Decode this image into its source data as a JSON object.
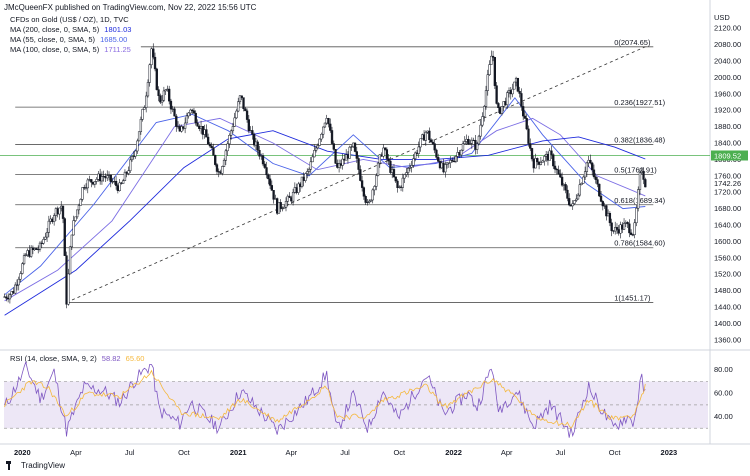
{
  "header": {
    "publisher_line": "JMcQueenFX published on TradingView.com, Nov 22, 2022 15:56 UTC"
  },
  "legend": {
    "title": "CFDs on Gold (US$ / OZ), 1D, TVC",
    "rows": [
      {
        "label": "MA (200, close, 0, SMA, 5)",
        "value": "1801.03",
        "color": "#1f2bdc"
      },
      {
        "label": "MA (55, close, 0, SMA, 5)",
        "value": "1685.00",
        "color": "#4a63e8"
      },
      {
        "label": "MA (100, close, 0, SMA, 5)",
        "value": "1711.25",
        "color": "#8a6be0"
      }
    ]
  },
  "rsi_legend": {
    "label": "RSI (14, close, SMA, 9, 2)",
    "rsi_value": "58.82",
    "ma_value": "65.60"
  },
  "footer": {
    "brand": "TradingView"
  },
  "colors": {
    "candle": "#131722",
    "fib_line": "#787b86",
    "ma200": "#1f2bdc",
    "ma55": "#4a63e8",
    "ma100": "#7d6fe4",
    "green_line": "#4caf50",
    "rsi_line": "#7e57c2",
    "rsi_ma": "#f5b83d",
    "rsi_band": "#ede7f6",
    "price_badge": "#4caf50"
  },
  "chart_data": [
    {
      "type": "candlestick",
      "title": "CFDs on Gold (US$ / OZ), 1D, TVC",
      "y_axis_label": "USD",
      "ylim": [
        1340,
        2140
      ],
      "y_ticks": [
        1360,
        1400,
        1440,
        1480,
        1520,
        1560,
        1600,
        1640,
        1680,
        1720,
        1760,
        1800,
        1840,
        1880,
        1920,
        1960,
        2000,
        2040,
        2080,
        2120
      ],
      "x_ticks": [
        "2020",
        "Apr",
        "Jul",
        "Oct",
        "2021",
        "Apr",
        "Jul",
        "Oct",
        "2022",
        "Apr",
        "Jul",
        "Oct",
        "2023"
      ],
      "x_tick_bold": [
        "2020",
        "2021",
        "2022",
        "2023"
      ],
      "last_price": "1742.26",
      "green_level": {
        "value": 1809.52,
        "label": "1809.52"
      },
      "fib_levels": [
        {
          "label": "0(2074.65)",
          "value": 2074.65
        },
        {
          "label": "0.236(1927.51)",
          "value": 1927.51
        },
        {
          "label": "0.382(1836.48)",
          "value": 1836.48
        },
        {
          "label": "0.5(1762.91)",
          "value": 1762.91
        },
        {
          "label": "0.618(1689.34)",
          "value": 1689.34
        },
        {
          "label": "0.786(1584.60)",
          "value": 1584.6
        },
        {
          "label": "1(1451.17)",
          "value": 1451.17
        }
      ],
      "trendline": {
        "from": [
          "2020-03-16",
          1451.17
        ],
        "to": [
          "2022-11-22",
          2074.65
        ]
      },
      "price_path": [
        [
          "2019-12-02",
          1465
        ],
        [
          "2019-12-16",
          1476
        ],
        [
          "2020-01-08",
          1570
        ],
        [
          "2020-01-31",
          1585
        ],
        [
          "2020-02-24",
          1670
        ],
        [
          "2020-03-09",
          1690
        ],
        [
          "2020-03-16",
          1455
        ],
        [
          "2020-03-24",
          1620
        ],
        [
          "2020-04-14",
          1740
        ],
        [
          "2020-05-18",
          1760
        ],
        [
          "2020-06-15",
          1730
        ],
        [
          "2020-07-08",
          1810
        ],
        [
          "2020-07-27",
          1940
        ],
        [
          "2020-08-07",
          2070
        ],
        [
          "2020-08-20",
          1940
        ],
        [
          "2020-09-01",
          1970
        ],
        [
          "2020-09-24",
          1860
        ],
        [
          "2020-10-12",
          1925
        ],
        [
          "2020-11-09",
          1850
        ],
        [
          "2020-11-30",
          1765
        ],
        [
          "2021-01-05",
          1955
        ],
        [
          "2021-01-25",
          1850
        ],
        [
          "2021-02-15",
          1790
        ],
        [
          "2021-03-08",
          1680
        ],
        [
          "2021-03-31",
          1705
        ],
        [
          "2021-04-30",
          1770
        ],
        [
          "2021-05-31",
          1910
        ],
        [
          "2021-06-17",
          1775
        ],
        [
          "2021-07-15",
          1830
        ],
        [
          "2021-08-09",
          1680
        ],
        [
          "2021-09-03",
          1830
        ],
        [
          "2021-09-29",
          1725
        ],
        [
          "2021-10-22",
          1795
        ],
        [
          "2021-11-16",
          1870
        ],
        [
          "2021-12-15",
          1770
        ],
        [
          "2022-01-25",
          1850
        ],
        [
          "2022-02-10",
          1830
        ],
        [
          "2022-03-08",
          2070
        ],
        [
          "2022-03-16",
          1910
        ],
        [
          "2022-04-18",
          1990
        ],
        [
          "2022-05-16",
          1790
        ],
        [
          "2022-06-14",
          1810
        ],
        [
          "2022-07-21",
          1680
        ],
        [
          "2022-08-17",
          1800
        ],
        [
          "2022-09-28",
          1625
        ],
        [
          "2022-10-21",
          1640
        ],
        [
          "2022-11-03",
          1620
        ],
        [
          "2022-11-15",
          1785
        ],
        [
          "2022-11-22",
          1742
        ]
      ],
      "ma_series": [
        {
          "name": "MA (55, close, 0, SMA, 5)",
          "points": [
            [
              "2019-12-02",
              1470
            ],
            [
              "2020-02-01",
              1540
            ],
            [
              "2020-05-01",
              1690
            ],
            [
              "2020-08-15",
              1890
            ],
            [
              "2020-10-15",
              1910
            ],
            [
              "2020-12-15",
              1870
            ],
            [
              "2021-03-01",
              1790
            ],
            [
              "2021-05-01",
              1760
            ],
            [
              "2021-07-15",
              1860
            ],
            [
              "2021-09-15",
              1780
            ],
            [
              "2021-12-01",
              1790
            ],
            [
              "2022-02-01",
              1815
            ],
            [
              "2022-04-15",
              1950
            ],
            [
              "2022-06-01",
              1860
            ],
            [
              "2022-08-15",
              1740
            ],
            [
              "2022-10-15",
              1680
            ],
            [
              "2022-11-22",
              1685
            ]
          ]
        },
        {
          "name": "MA (100, close, 0, SMA, 5)",
          "points": [
            [
              "2019-12-02",
              1455
            ],
            [
              "2020-03-01",
              1530
            ],
            [
              "2020-06-01",
              1650
            ],
            [
              "2020-09-15",
              1880
            ],
            [
              "2020-12-01",
              1900
            ],
            [
              "2021-03-01",
              1840
            ],
            [
              "2021-05-15",
              1775
            ],
            [
              "2021-08-01",
              1800
            ],
            [
              "2021-10-15",
              1780
            ],
            [
              "2022-01-01",
              1800
            ],
            [
              "2022-03-15",
              1870
            ],
            [
              "2022-05-15",
              1900
            ],
            [
              "2022-07-01",
              1860
            ],
            [
              "2022-09-01",
              1760
            ],
            [
              "2022-11-22",
              1711
            ]
          ]
        },
        {
          "name": "MA (200, close, 0, SMA, 5)",
          "points": [
            [
              "2019-12-02",
              1420
            ],
            [
              "2020-04-01",
              1530
            ],
            [
              "2020-07-01",
              1650
            ],
            [
              "2020-10-01",
              1780
            ],
            [
              "2020-12-15",
              1850
            ],
            [
              "2021-03-01",
              1870
            ],
            [
              "2021-06-01",
              1820
            ],
            [
              "2021-09-01",
              1800
            ],
            [
              "2021-12-01",
              1800
            ],
            [
              "2022-03-01",
              1810
            ],
            [
              "2022-06-01",
              1845
            ],
            [
              "2022-08-01",
              1855
            ],
            [
              "2022-10-01",
              1830
            ],
            [
              "2022-11-22",
              1801
            ]
          ]
        }
      ]
    },
    {
      "type": "line",
      "title": "RSI (14, close, SMA, 9, 2)",
      "ylim": [
        20,
        90
      ],
      "y_ticks": [
        40.0,
        60.0,
        80.0
      ],
      "band": [
        30,
        70
      ],
      "series": [
        {
          "name": "RSI",
          "points": [
            [
              "2019-12-02",
              48
            ],
            [
              "2020-01-08",
              82
            ],
            [
              "2020-02-01",
              55
            ],
            [
              "2020-02-24",
              78
            ],
            [
              "2020-03-16",
              28
            ],
            [
              "2020-04-14",
              65
            ],
            [
              "2020-05-18",
              62
            ],
            [
              "2020-06-15",
              52
            ],
            [
              "2020-07-08",
              70
            ],
            [
              "2020-08-07",
              85
            ],
            [
              "2020-08-20",
              45
            ],
            [
              "2020-09-24",
              34
            ],
            [
              "2020-10-12",
              52
            ],
            [
              "2020-11-30",
              30
            ],
            [
              "2021-01-05",
              62
            ],
            [
              "2021-02-15",
              40
            ],
            [
              "2021-03-08",
              28
            ],
            [
              "2021-04-30",
              55
            ],
            [
              "2021-05-31",
              76
            ],
            [
              "2021-06-17",
              28
            ],
            [
              "2021-07-15",
              58
            ],
            [
              "2021-08-09",
              30
            ],
            [
              "2021-09-03",
              62
            ],
            [
              "2021-09-29",
              38
            ],
            [
              "2021-11-16",
              76
            ],
            [
              "2021-12-15",
              42
            ],
            [
              "2022-01-25",
              60
            ],
            [
              "2022-02-10",
              48
            ],
            [
              "2022-03-08",
              85
            ],
            [
              "2022-03-16",
              45
            ],
            [
              "2022-04-18",
              62
            ],
            [
              "2022-05-16",
              32
            ],
            [
              "2022-06-14",
              50
            ],
            [
              "2022-07-21",
              24
            ],
            [
              "2022-08-17",
              66
            ],
            [
              "2022-09-28",
              30
            ],
            [
              "2022-10-21",
              40
            ],
            [
              "2022-11-03",
              35
            ],
            [
              "2022-11-15",
              73
            ],
            [
              "2022-11-22",
              58.82
            ]
          ]
        },
        {
          "name": "RSI MA",
          "points": [
            [
              "2019-12-02",
              50
            ],
            [
              "2020-01-15",
              70
            ],
            [
              "2020-02-15",
              64
            ],
            [
              "2020-03-16",
              40
            ],
            [
              "2020-04-20",
              60
            ],
            [
              "2020-06-15",
              57
            ],
            [
              "2020-08-07",
              78
            ],
            [
              "2020-09-24",
              44
            ],
            [
              "2020-11-30",
              38
            ],
            [
              "2021-01-05",
              55
            ],
            [
              "2021-03-08",
              36
            ],
            [
              "2021-05-31",
              66
            ],
            [
              "2021-06-17",
              40
            ],
            [
              "2021-08-09",
              40
            ],
            [
              "2021-09-03",
              54
            ],
            [
              "2021-11-16",
              66
            ],
            [
              "2021-12-15",
              48
            ],
            [
              "2022-03-08",
              72
            ],
            [
              "2022-04-18",
              56
            ],
            [
              "2022-05-16",
              40
            ],
            [
              "2022-07-21",
              32
            ],
            [
              "2022-08-17",
              54
            ],
            [
              "2022-09-28",
              38
            ],
            [
              "2022-11-03",
              42
            ],
            [
              "2022-11-22",
              65.6
            ]
          ]
        }
      ]
    }
  ]
}
